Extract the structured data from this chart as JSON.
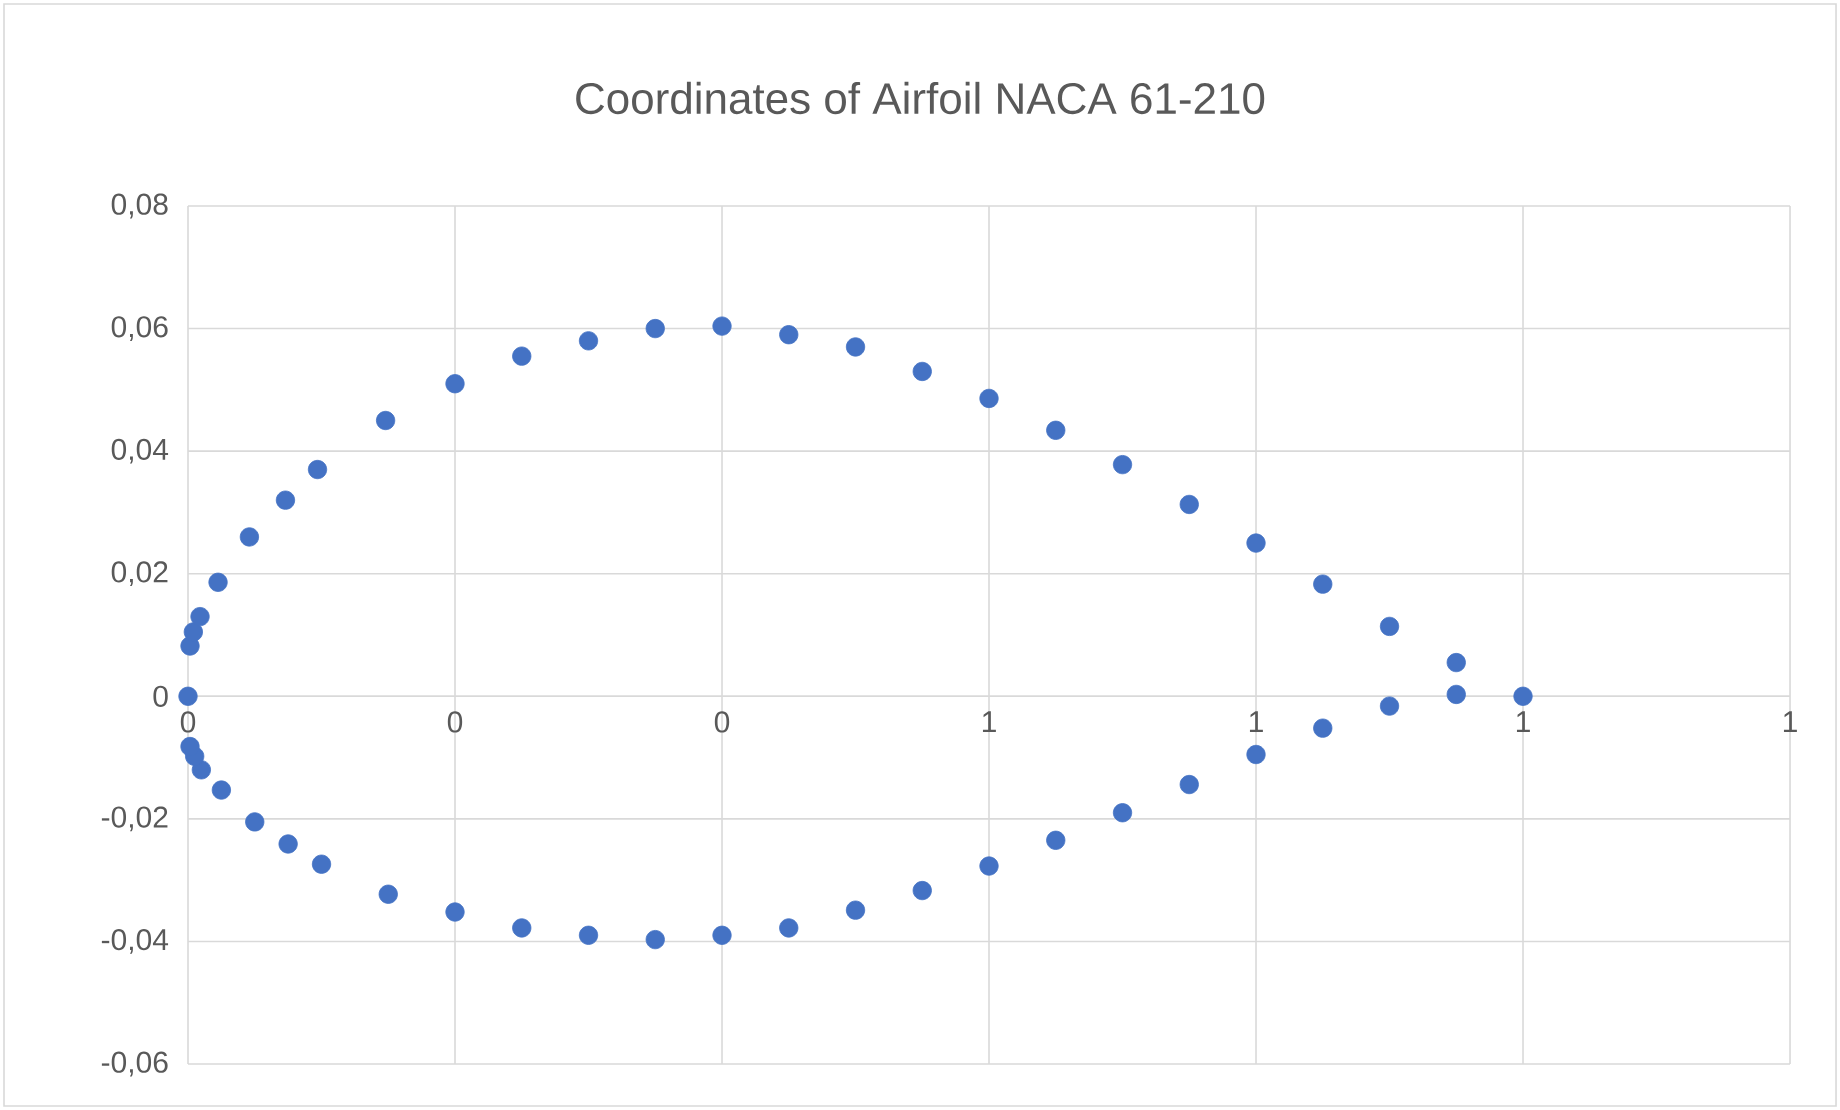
{
  "chart_data": {
    "type": "scatter",
    "title": "Coordinates of Airfoil NACA 61-210",
    "x": [
      0,
      0.0015,
      0.004,
      0.009,
      0.0225,
      0.046,
      0.073,
      0.097,
      0.148,
      0.2,
      0.25,
      0.3,
      0.35,
      0.4,
      0.45,
      0.5,
      0.55,
      0.6,
      0.65,
      0.7,
      0.75,
      0.8,
      0.85,
      0.9,
      0.95,
      1.0,
      0.95,
      0.9,
      0.85,
      0.8,
      0.75,
      0.7,
      0.65,
      0.6,
      0.55,
      0.5,
      0.45,
      0.4,
      0.35,
      0.3,
      0.25,
      0.2,
      0.15,
      0.1,
      0.075,
      0.05,
      0.025,
      0.01,
      0.005,
      0.0015
    ],
    "values": [
      0,
      0.0082,
      0.0105,
      0.013,
      0.0186,
      0.026,
      0.032,
      0.037,
      0.045,
      0.051,
      0.0555,
      0.058,
      0.06,
      0.0604,
      0.059,
      0.057,
      0.053,
      0.0486,
      0.0434,
      0.0378,
      0.0313,
      0.025,
      0.0183,
      0.0114,
      0.0055,
      0,
      0.0003,
      -0.0016,
      -0.0052,
      -0.0095,
      -0.0144,
      -0.019,
      -0.0235,
      -0.0277,
      -0.0317,
      -0.0349,
      -0.0378,
      -0.039,
      -0.0397,
      -0.039,
      -0.0378,
      -0.0352,
      -0.0323,
      -0.0274,
      -0.0241,
      -0.0205,
      -0.0153,
      -0.012,
      -0.0098,
      -0.0082
    ],
    "color": "#4472c4",
    "marker": "circle",
    "grid": true,
    "xlim": [
      0,
      1.2
    ],
    "xticks": [
      {
        "value": 0,
        "label": "0"
      },
      {
        "value": 0.2,
        "label": "0"
      },
      {
        "value": 0.4,
        "label": "0"
      },
      {
        "value": 0.6,
        "label": "1"
      },
      {
        "value": 0.8,
        "label": "1"
      },
      {
        "value": 1.0,
        "label": "1"
      },
      {
        "value": 1.2,
        "label": "1"
      }
    ],
    "ylim": [
      -0.06,
      0.08
    ],
    "yticks": [
      {
        "value": -0.06,
        "label": "-0,06"
      },
      {
        "value": -0.04,
        "label": "-0,04"
      },
      {
        "value": -0.02,
        "label": "-0,02"
      },
      {
        "value": 0,
        "label": "0"
      },
      {
        "value": 0.02,
        "label": "0,02"
      },
      {
        "value": 0.04,
        "label": "0,04"
      },
      {
        "value": 0.06,
        "label": "0,06"
      },
      {
        "value": 0.08,
        "label": "0,08"
      }
    ]
  }
}
